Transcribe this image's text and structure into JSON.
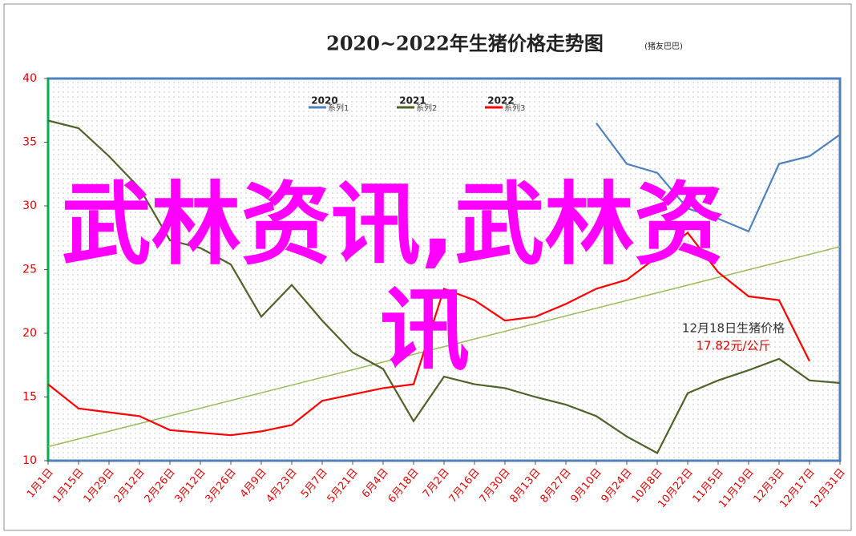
{
  "chart_data": {
    "type": "line",
    "title": "2020~2022年生猪价格走势图",
    "subtitle": "(猪友巴巴)",
    "categories": [
      "1月1日",
      "1月15日",
      "1月29日",
      "2月12日",
      "2月26日",
      "3月12日",
      "3月26日",
      "4月9日",
      "4月23日",
      "5月7日",
      "5月21日",
      "6月4日",
      "6月18日",
      "7月2日",
      "7月16日",
      "7月30日",
      "8月13日",
      "8月27日",
      "9月10日",
      "9月24日",
      "10月8日",
      "10月22日",
      "11月5日",
      "11月19日",
      "12月3日",
      "12月17日",
      "12月31日"
    ],
    "series": [
      {
        "name": "2020",
        "legend_label": "系列1",
        "color": "#4f81bd",
        "values": [
          null,
          null,
          null,
          null,
          null,
          null,
          null,
          null,
          null,
          null,
          null,
          null,
          null,
          null,
          null,
          null,
          null,
          null,
          36.5,
          33.3,
          32.6,
          29.8,
          29,
          28,
          33.3,
          33.9,
          35.6
        ]
      },
      {
        "name": "2021",
        "legend_label": "系列2",
        "color": "#4f6228",
        "values": [
          36.7,
          36.1,
          33.9,
          31.4,
          27.3,
          26.7,
          25.4,
          21.3,
          23.8,
          21,
          18.5,
          17.2,
          13.1,
          16.6,
          16,
          15.7,
          15,
          14.4,
          13.5,
          11.9,
          10.6,
          15.3,
          16.3,
          17.1,
          18,
          16.3,
          16.1
        ]
      },
      {
        "name": "2022",
        "legend_label": "系列3",
        "color": "#ff0000",
        "values": [
          16,
          14.1,
          13.8,
          13.5,
          12.4,
          12.2,
          12,
          12.3,
          12.8,
          14.7,
          15.2,
          15.7,
          16,
          23.5,
          22.6,
          21,
          21.3,
          22.3,
          23.5,
          24.2,
          26,
          27.9,
          24.8,
          22.9,
          22.6,
          17.82,
          null
        ]
      }
    ],
    "trendline": {
      "color": "#9bbb59",
      "start": 11.1,
      "end": 26.8
    },
    "ylim": [
      10,
      40
    ],
    "yticks": [
      10,
      15,
      20,
      25,
      30,
      35,
      40
    ],
    "annotation": {
      "title": "12月18日生猪价格",
      "value": "17.82元/公斤"
    },
    "watermark": [
      "武林资讯,武林资",
      "讯"
    ]
  }
}
